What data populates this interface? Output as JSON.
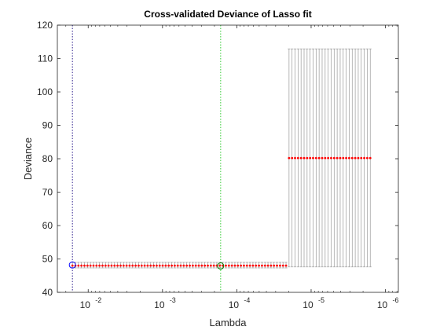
{
  "chart_data": {
    "type": "scatter",
    "title": "Cross-validated Deviance of Lasso fit",
    "xlabel": "Lambda",
    "ylabel": "Deviance",
    "x_scale": "log",
    "x_reversed": true,
    "xlim": [
      0.026,
      6.7e-07
    ],
    "ylim": [
      40,
      120
    ],
    "yticks": [
      40,
      50,
      60,
      70,
      80,
      90,
      100,
      110,
      120
    ],
    "xticks": [
      {
        "value": 0.01,
        "base": "10",
        "exp": "-2"
      },
      {
        "value": 0.001,
        "base": "10",
        "exp": "-3"
      },
      {
        "value": 0.0001,
        "base": "10",
        "exp": "-4"
      },
      {
        "value": 1e-05,
        "base": "10",
        "exp": "-5"
      },
      {
        "value": 1e-06,
        "base": "10",
        "exp": "-6"
      }
    ],
    "grid": false,
    "lambda_range": [
      0.0163,
      1.6e-06
    ],
    "n_points": 100,
    "segments": [
      {
        "from_lambda": 0.0163,
        "to_lambda": 2.07e-05,
        "mean": 48.0,
        "upper": 49.0,
        "lower": 47.3
      },
      {
        "from_lambda": 2.07e-05,
        "to_lambda": 1.6e-06,
        "mean": 80.2,
        "upper": 112.9,
        "lower": 47.6
      }
    ],
    "reference_lines": [
      {
        "name": "LambdaMinDeviance",
        "lambda": 0.0163,
        "color": "#2a1a8c",
        "style": "dotted"
      },
      {
        "name": "Lambda1SE",
        "lambda": 0.000165,
        "color": "#33cc33",
        "style": "dotted"
      }
    ],
    "circled_points": [
      {
        "lambda": 0.0163,
        "deviance": 48.2,
        "color": "#0000ff"
      },
      {
        "lambda": 0.000165,
        "deviance": 47.9,
        "color": "#008000"
      }
    ],
    "colors": {
      "mean_marker": "#ff0000",
      "error_bar": "#999999",
      "axes": "#262626"
    }
  }
}
